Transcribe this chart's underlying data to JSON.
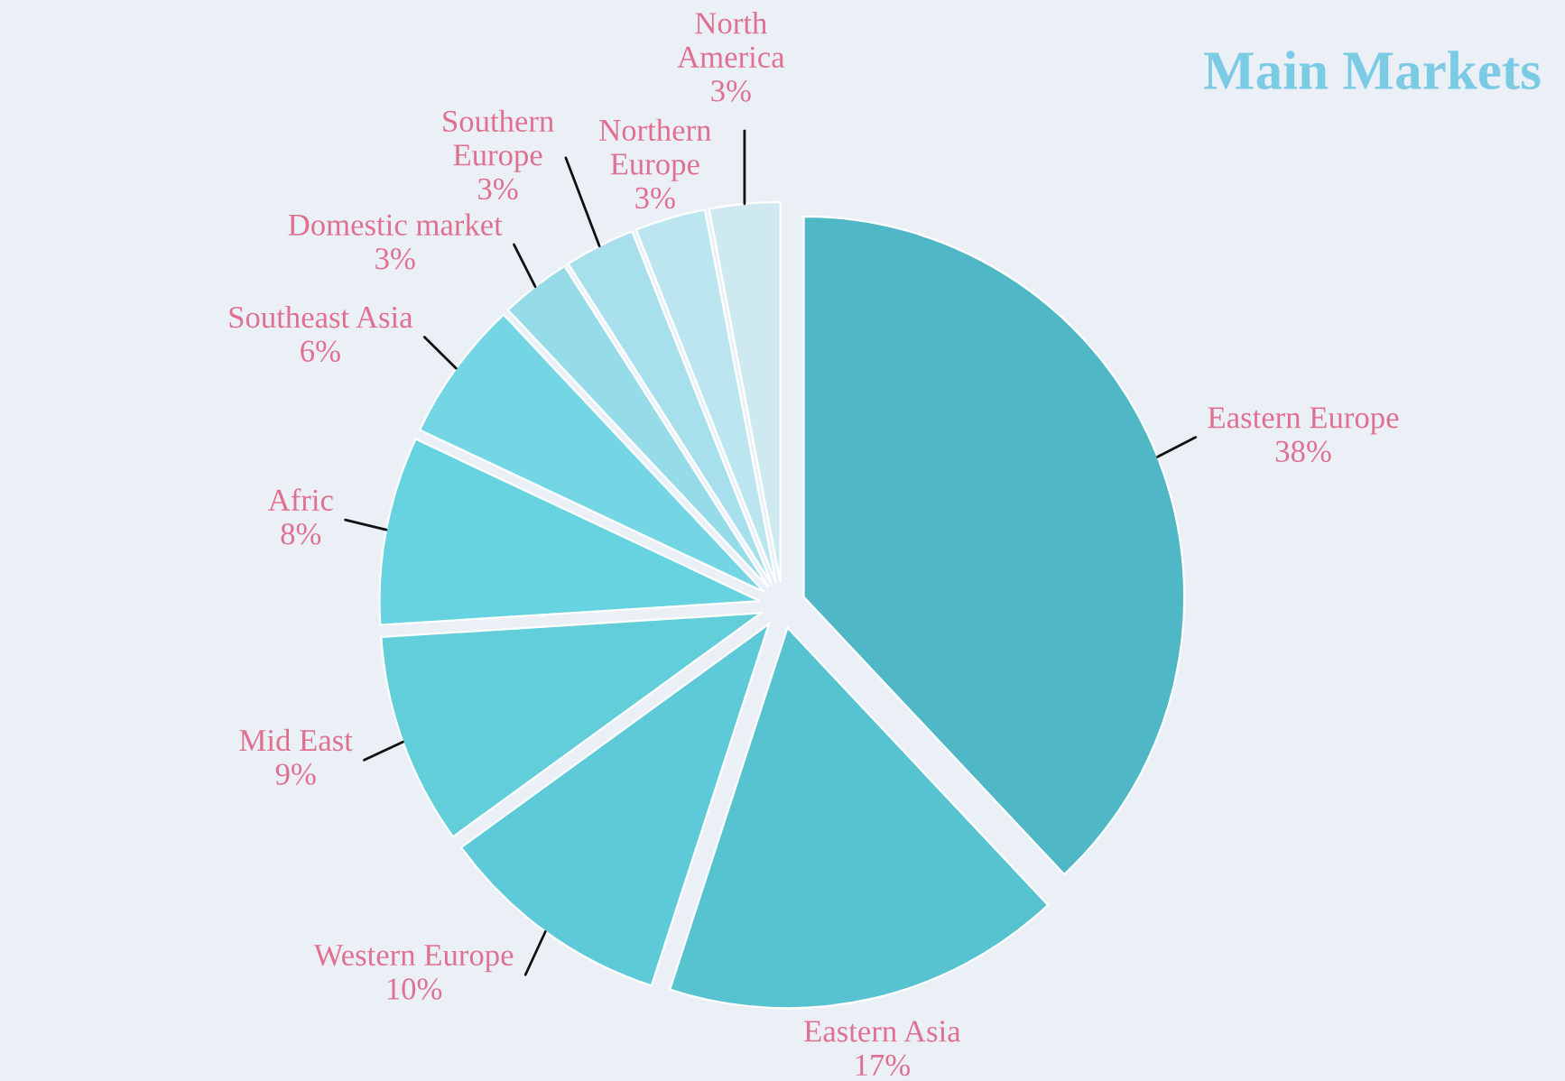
{
  "chart_data": {
    "type": "pie",
    "title": "Main Markets",
    "categories": [
      "Eastern Europe",
      "Eastern Asia",
      "Western Europe",
      "Mid East",
      "Afric",
      "Southeast Asia",
      "Domestic market",
      "Southern Europe",
      "Northern Europe",
      "North America"
    ],
    "values": [
      38,
      17,
      10,
      9,
      8,
      6,
      3,
      3,
      3,
      3
    ],
    "value_labels": [
      "38%",
      "17%",
      "10%",
      "9%",
      "8%",
      "6%",
      "3%",
      "3%",
      "3%",
      "3%"
    ],
    "colors": [
      "#4fb7c6",
      "#58c3d0",
      "#5ec9d8",
      "#62ced9",
      "#68d3e0",
      "#74d6e4",
      "#96dbe8",
      "#a7e0ec",
      "#bbe5ef",
      "#cfe9f0"
    ]
  }
}
